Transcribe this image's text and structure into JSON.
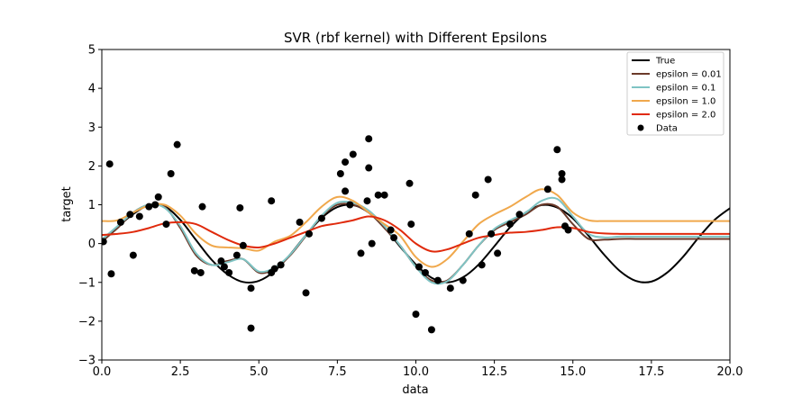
{
  "chart_data": {
    "type": "line",
    "title": "SVR (rbf kernel) with Different Epsilons",
    "xlabel": "data",
    "ylabel": "target",
    "xlim": [
      0,
      20
    ],
    "ylim": [
      -3,
      5
    ],
    "xticks": [
      "0.0",
      "2.5",
      "5.0",
      "7.5",
      "10.0",
      "12.5",
      "15.0",
      "17.5",
      "20.0"
    ],
    "yticks": [
      "−3",
      "−2",
      "−1",
      "0",
      "1",
      "2",
      "3",
      "4",
      "5"
    ],
    "grid": false,
    "legend_position": "top-right",
    "series": [
      {
        "name": "True",
        "color": "#000000",
        "x": [
          0,
          0.5,
          1,
          1.5,
          2,
          2.5,
          3,
          3.5,
          4,
          4.5,
          5,
          5.5,
          6,
          6.5,
          7,
          7.5,
          8,
          8.5,
          9,
          9.5,
          10,
          10.5,
          11,
          11.5,
          12,
          12.5,
          13,
          13.5,
          14,
          14.5,
          15,
          15.5,
          16,
          16.5,
          17,
          17.5,
          18,
          18.5,
          19,
          19.5,
          20
        ],
        "values": [
          0.1,
          0.43,
          0.76,
          0.99,
          0.96,
          0.61,
          0.09,
          -0.42,
          -0.79,
          -0.99,
          -0.96,
          -0.71,
          -0.28,
          0.22,
          0.66,
          0.94,
          0.99,
          0.8,
          0.41,
          -0.08,
          -0.54,
          -0.88,
          -1.0,
          -0.87,
          -0.54,
          -0.07,
          0.42,
          0.8,
          0.99,
          0.93,
          0.65,
          0.2,
          -0.29,
          -0.71,
          -0.96,
          -0.98,
          -0.75,
          -0.35,
          0.15,
          0.6,
          0.91
        ]
      },
      {
        "name": "epsilon = 0.01",
        "color": "#6b3a2a",
        "x": [
          0,
          0.5,
          1,
          1.5,
          2,
          2.5,
          3,
          3.5,
          4,
          4.5,
          5,
          5.5,
          6,
          6.5,
          7,
          7.5,
          8,
          8.5,
          9,
          9.5,
          10,
          10.5,
          11,
          11.5,
          12,
          12.5,
          13,
          13.5,
          14,
          14.5,
          15,
          15.5,
          16,
          16.5,
          17,
          17.5,
          18,
          18.5,
          19,
          19.5,
          20
        ],
        "values": [
          0.05,
          0.4,
          0.8,
          1.0,
          0.95,
          0.4,
          -0.3,
          -0.55,
          -0.45,
          -0.4,
          -0.75,
          -0.65,
          -0.3,
          0.2,
          0.7,
          1.0,
          1.0,
          0.8,
          0.4,
          -0.05,
          -0.6,
          -0.95,
          -0.95,
          -0.55,
          -0.05,
          0.35,
          0.55,
          0.75,
          1.0,
          0.95,
          0.5,
          0.12,
          0.1,
          0.12,
          0.12,
          0.12,
          0.12,
          0.12,
          0.12,
          0.12,
          0.12
        ]
      },
      {
        "name": "epsilon = 0.1",
        "color": "#7fc4c4",
        "x": [
          0,
          0.5,
          1,
          1.5,
          2,
          2.5,
          3,
          3.5,
          4,
          4.5,
          5,
          5.5,
          6,
          6.5,
          7,
          7.5,
          8,
          8.5,
          9,
          9.5,
          10,
          10.5,
          11,
          11.5,
          12,
          12.5,
          13,
          13.5,
          14,
          14.5,
          15,
          15.5,
          16,
          16.5,
          17,
          17.5,
          18,
          18.5,
          19,
          19.5,
          20
        ],
        "values": [
          0.1,
          0.45,
          0.8,
          1.0,
          0.92,
          0.45,
          -0.25,
          -0.55,
          -0.48,
          -0.4,
          -0.72,
          -0.62,
          -0.28,
          0.22,
          0.72,
          1.05,
          1.05,
          0.85,
          0.45,
          -0.05,
          -0.6,
          -1.0,
          -0.97,
          -0.55,
          -0.05,
          0.38,
          0.6,
          0.8,
          1.1,
          1.15,
          0.7,
          0.25,
          0.16,
          0.18,
          0.18,
          0.18,
          0.18,
          0.18,
          0.18,
          0.18,
          0.18
        ]
      },
      {
        "name": "epsilon = 1.0",
        "color": "#f0a84c",
        "x": [
          0,
          0.5,
          1,
          1.5,
          2,
          2.5,
          3,
          3.5,
          4,
          4.5,
          5,
          5.5,
          6,
          6.5,
          7,
          7.5,
          8,
          8.5,
          9,
          9.5,
          10,
          10.5,
          11,
          11.5,
          12,
          12.5,
          13,
          13.5,
          14,
          14.5,
          15,
          15.5,
          16,
          16.5,
          17,
          17.5,
          18,
          18.5,
          19,
          19.5,
          20
        ],
        "values": [
          0.58,
          0.6,
          0.8,
          0.98,
          1.0,
          0.72,
          0.25,
          -0.05,
          -0.1,
          -0.12,
          -0.18,
          0.05,
          0.2,
          0.55,
          0.95,
          1.2,
          1.1,
          0.8,
          0.5,
          0.2,
          -0.35,
          -0.6,
          -0.4,
          0.05,
          0.5,
          0.75,
          0.95,
          1.2,
          1.4,
          1.25,
          0.8,
          0.6,
          0.58,
          0.58,
          0.58,
          0.58,
          0.58,
          0.58,
          0.58,
          0.58,
          0.58
        ]
      },
      {
        "name": "epsilon = 2.0",
        "color": "#e02a0c",
        "x": [
          0,
          0.5,
          1,
          1.5,
          2,
          2.5,
          3,
          3.5,
          4,
          4.5,
          5,
          5.5,
          6,
          6.5,
          7,
          7.5,
          8,
          8.5,
          9,
          9.5,
          10,
          10.5,
          11,
          11.5,
          12,
          12.5,
          13,
          13.5,
          14,
          14.5,
          15,
          15.5,
          16,
          16.5,
          17,
          17.5,
          18,
          18.5,
          19,
          19.5,
          20
        ],
        "values": [
          0.22,
          0.25,
          0.3,
          0.4,
          0.52,
          0.55,
          0.5,
          0.3,
          0.1,
          -0.05,
          -0.1,
          0.0,
          0.15,
          0.3,
          0.45,
          0.52,
          0.6,
          0.7,
          0.6,
          0.35,
          0.0,
          -0.2,
          -0.15,
          0.0,
          0.15,
          0.22,
          0.28,
          0.3,
          0.35,
          0.42,
          0.4,
          0.3,
          0.26,
          0.25,
          0.25,
          0.25,
          0.25,
          0.25,
          0.25,
          0.25,
          0.25
        ]
      }
    ],
    "scatter": {
      "name": "Data",
      "color": "#000000",
      "points": [
        [
          0.05,
          0.05
        ],
        [
          0.25,
          2.05
        ],
        [
          0.3,
          -0.78
        ],
        [
          0.6,
          0.55
        ],
        [
          0.9,
          0.75
        ],
        [
          1.0,
          -0.3
        ],
        [
          1.2,
          0.7
        ],
        [
          1.5,
          0.95
        ],
        [
          1.7,
          1.0
        ],
        [
          1.8,
          1.2
        ],
        [
          2.05,
          0.5
        ],
        [
          2.2,
          1.8
        ],
        [
          2.4,
          2.55
        ],
        [
          2.95,
          -0.7
        ],
        [
          3.15,
          -0.75
        ],
        [
          3.2,
          0.95
        ],
        [
          3.8,
          -0.45
        ],
        [
          3.9,
          -0.6
        ],
        [
          4.05,
          -0.75
        ],
        [
          4.3,
          -0.3
        ],
        [
          4.4,
          0.92
        ],
        [
          4.5,
          -0.05
        ],
        [
          4.75,
          -1.15
        ],
        [
          4.75,
          -2.18
        ],
        [
          5.4,
          1.1
        ],
        [
          5.4,
          -0.75
        ],
        [
          5.5,
          -0.65
        ],
        [
          5.7,
          -0.55
        ],
        [
          6.3,
          0.55
        ],
        [
          6.5,
          -1.27
        ],
        [
          6.6,
          0.25
        ],
        [
          7.0,
          0.65
        ],
        [
          7.6,
          1.8
        ],
        [
          7.75,
          2.1
        ],
        [
          7.75,
          1.35
        ],
        [
          7.9,
          1.0
        ],
        [
          8.0,
          2.3
        ],
        [
          8.25,
          -0.25
        ],
        [
          8.45,
          1.1
        ],
        [
          8.5,
          1.95
        ],
        [
          8.5,
          2.7
        ],
        [
          8.6,
          0.0
        ],
        [
          8.8,
          1.25
        ],
        [
          9.0,
          1.25
        ],
        [
          9.2,
          0.35
        ],
        [
          9.3,
          0.15
        ],
        [
          9.8,
          1.55
        ],
        [
          9.85,
          0.5
        ],
        [
          10.0,
          -1.82
        ],
        [
          10.1,
          -0.6
        ],
        [
          10.3,
          -0.75
        ],
        [
          10.5,
          -2.22
        ],
        [
          10.7,
          -0.95
        ],
        [
          11.1,
          -1.15
        ],
        [
          11.5,
          -0.95
        ],
        [
          11.7,
          0.25
        ],
        [
          11.9,
          1.25
        ],
        [
          12.1,
          -0.55
        ],
        [
          12.3,
          1.65
        ],
        [
          12.4,
          0.25
        ],
        [
          12.6,
          -0.25
        ],
        [
          13.0,
          0.5
        ],
        [
          13.3,
          0.75
        ],
        [
          14.2,
          1.4
        ],
        [
          14.5,
          2.42
        ],
        [
          14.65,
          1.8
        ],
        [
          14.65,
          1.65
        ],
        [
          14.75,
          0.45
        ],
        [
          14.85,
          0.35
        ]
      ]
    }
  }
}
